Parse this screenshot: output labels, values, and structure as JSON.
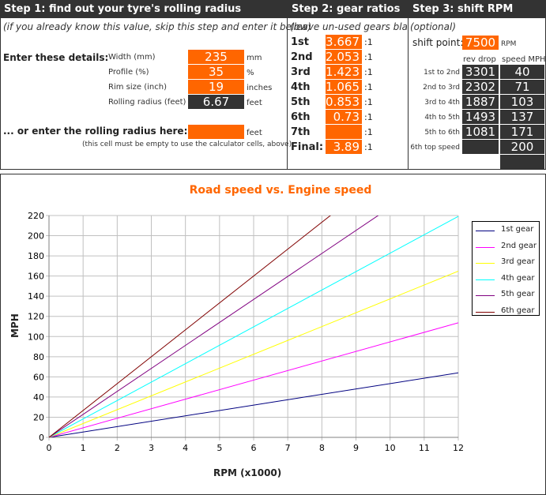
{
  "step1": {
    "title": "Step 1: find out your tyre's rolling radius",
    "subtitle": "(if you already know this value, skip this step and enter it below)",
    "enter_label": "Enter these details:",
    "rows": [
      {
        "label": "Width (mm)",
        "value": "235",
        "unit": "mm"
      },
      {
        "label": "Profile (%)",
        "value": "35",
        "unit": "%"
      },
      {
        "label": "Rim size (inch)",
        "value": "19",
        "unit": "inches"
      },
      {
        "label": "Rolling radius (feet)",
        "value": "6.67",
        "unit": "feet"
      }
    ],
    "or_label": "... or enter the rolling radius here:",
    "or_value": "",
    "or_unit": "feet",
    "note": "(this cell must be empty to use the calculator cells, above)"
  },
  "step2": {
    "title": "Step 2: gear ratios",
    "subtitle": "(leave un-used gears blank)",
    "gears": [
      {
        "label": "1st",
        "value": "3.667",
        "suffix": ":1"
      },
      {
        "label": "2nd",
        "value": "2.053",
        "suffix": ":1"
      },
      {
        "label": "3rd",
        "value": "1.423",
        "suffix": ":1"
      },
      {
        "label": "4th",
        "value": "1.065",
        "suffix": ":1"
      },
      {
        "label": "5th",
        "value": "0.853",
        "suffix": ":1"
      },
      {
        "label": "6th",
        "value": "0.73",
        "suffix": ":1"
      },
      {
        "label": "7th",
        "value": "",
        "suffix": ":1"
      },
      {
        "label": "Final:",
        "value": "3.89",
        "suffix": ":1"
      }
    ]
  },
  "step3": {
    "title": "Step 3: shift RPM",
    "subtitle": "(optional)",
    "shift_label": "shift point:",
    "shift_value": "7500",
    "shift_unit": "RPM",
    "col_rev": "rev drop",
    "col_speed": "speed MPH",
    "rows": [
      {
        "label": "1st to 2nd",
        "rev": "3301",
        "speed": "40"
      },
      {
        "label": "2nd to 3rd",
        "rev": "2302",
        "speed": "71"
      },
      {
        "label": "3rd to 4th",
        "rev": "1887",
        "speed": "103"
      },
      {
        "label": "4th to 5th",
        "rev": "1493",
        "speed": "137"
      },
      {
        "label": "5th to 6th",
        "rev": "1081",
        "speed": "171"
      },
      {
        "label": "6th top speed",
        "rev": "",
        "speed": "200"
      }
    ]
  },
  "chart_data": {
    "type": "line",
    "title": "Road speed vs. Engine speed",
    "xlabel": "RPM (x1000)",
    "ylabel": "MPH",
    "xlim": [
      0,
      12
    ],
    "ylim": [
      0,
      220
    ],
    "xticks": [
      "0",
      "1",
      "2",
      "3",
      "4",
      "5",
      "6",
      "7",
      "8",
      "9",
      "10",
      "11",
      "12"
    ],
    "yticks": [
      "0",
      "20",
      "40",
      "60",
      "80",
      "100",
      "120",
      "140",
      "160",
      "180",
      "200",
      "220"
    ],
    "grid": true,
    "legend": "right",
    "series": [
      {
        "name": "1st gear",
        "color": "#000080",
        "x": [
          0,
          12
        ],
        "y": [
          0,
          64
        ]
      },
      {
        "name": "2nd gear",
        "color": "#ff00ff",
        "x": [
          0,
          12
        ],
        "y": [
          0,
          113.6
        ]
      },
      {
        "name": "3rd gear",
        "color": "#ffff00",
        "x": [
          0,
          12
        ],
        "y": [
          0,
          164.8
        ]
      },
      {
        "name": "4th gear",
        "color": "#00ffff",
        "x": [
          0,
          12
        ],
        "y": [
          0,
          219.2
        ]
      },
      {
        "name": "5th gear",
        "color": "#800080",
        "x": [
          0,
          12
        ],
        "y": [
          0,
          273.6
        ]
      },
      {
        "name": "6th gear",
        "color": "#800000",
        "x": [
          0,
          12
        ],
        "y": [
          0,
          320
        ]
      }
    ]
  },
  "colors": {
    "accent": "#ff6600",
    "dark": "#333333"
  }
}
